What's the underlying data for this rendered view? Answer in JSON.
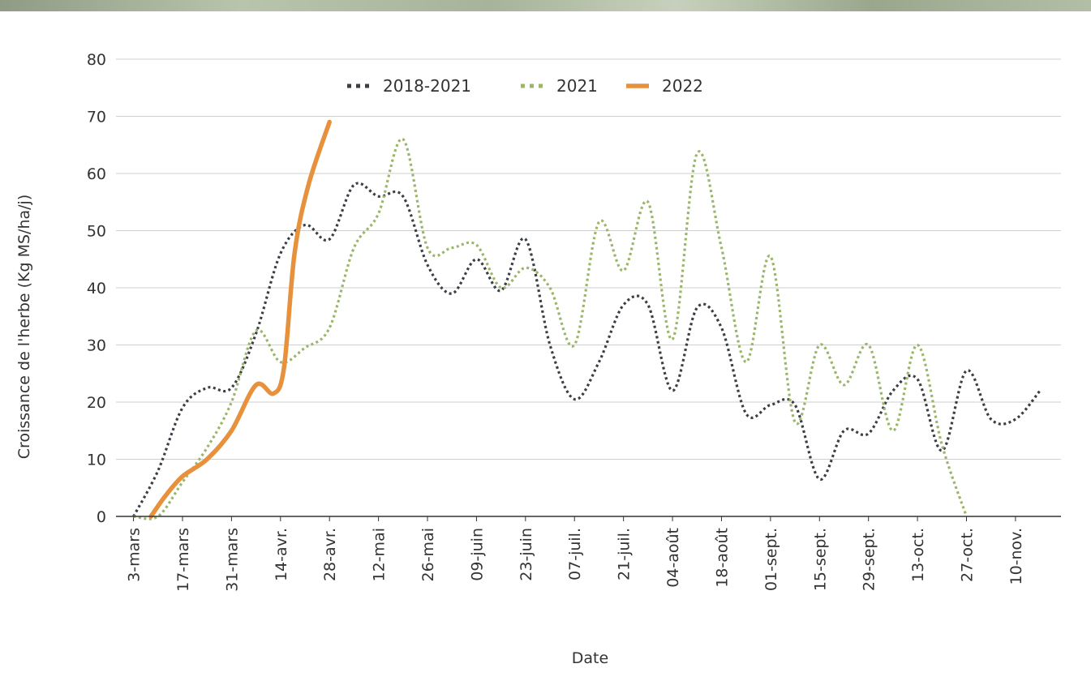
{
  "chart_data": {
    "type": "line",
    "xlabel": "Date",
    "ylabel": "Croissance de l'herbe (Kg MS/ha/j)",
    "ylim": [
      0,
      80
    ],
    "yticks": [
      0,
      10,
      20,
      30,
      40,
      50,
      60,
      70,
      80
    ],
    "xlim": [
      "2022-02-26",
      "2022-11-23"
    ],
    "x_tick_labels": [
      {
        "date": "2022-03-03",
        "label": "3-mars"
      },
      {
        "date": "2022-03-17",
        "label": "17-mars"
      },
      {
        "date": "2022-03-31",
        "label": "31-mars"
      },
      {
        "date": "2022-04-14",
        "label": "14-avr."
      },
      {
        "date": "2022-04-28",
        "label": "28-avr."
      },
      {
        "date": "2022-05-12",
        "label": "12-mai"
      },
      {
        "date": "2022-05-26",
        "label": "26-mai"
      },
      {
        "date": "2022-06-09",
        "label": "09-juin"
      },
      {
        "date": "2022-06-23",
        "label": "23-juin"
      },
      {
        "date": "2022-07-07",
        "label": "07-juil."
      },
      {
        "date": "2022-07-21",
        "label": "21-juil."
      },
      {
        "date": "2022-08-04",
        "label": "04-août"
      },
      {
        "date": "2022-08-18",
        "label": "18-août"
      },
      {
        "date": "2022-09-01",
        "label": "01-sept."
      },
      {
        "date": "2022-09-15",
        "label": "15-sept."
      },
      {
        "date": "2022-09-29",
        "label": "29-sept."
      },
      {
        "date": "2022-10-13",
        "label": "13-oct."
      },
      {
        "date": "2022-10-27",
        "label": "27-oct."
      },
      {
        "date": "2022-11-10",
        "label": "10-nov."
      }
    ],
    "grid": true,
    "legend_position": "top-center",
    "series": [
      {
        "name": "2018-2021",
        "color": "#3a3f45",
        "style": "dotted",
        "points": [
          {
            "x": "2022-03-03",
            "y": 0
          },
          {
            "x": "2022-03-10",
            "y": 8
          },
          {
            "x": "2022-03-17",
            "y": 19
          },
          {
            "x": "2022-03-24",
            "y": 22.5
          },
          {
            "x": "2022-03-31",
            "y": 22.5
          },
          {
            "x": "2022-04-07",
            "y": 32
          },
          {
            "x": "2022-04-14",
            "y": 46
          },
          {
            "x": "2022-04-21",
            "y": 51
          },
          {
            "x": "2022-04-28",
            "y": 48.5
          },
          {
            "x": "2022-05-05",
            "y": 58
          },
          {
            "x": "2022-05-12",
            "y": 56
          },
          {
            "x": "2022-05-19",
            "y": 56
          },
          {
            "x": "2022-05-26",
            "y": 44
          },
          {
            "x": "2022-06-02",
            "y": 39
          },
          {
            "x": "2022-06-09",
            "y": 45
          },
          {
            "x": "2022-06-16",
            "y": 39.5
          },
          {
            "x": "2022-06-23",
            "y": 48.5
          },
          {
            "x": "2022-06-30",
            "y": 30
          },
          {
            "x": "2022-07-07",
            "y": 20.5
          },
          {
            "x": "2022-07-14",
            "y": 27
          },
          {
            "x": "2022-07-21",
            "y": 37
          },
          {
            "x": "2022-07-28",
            "y": 37
          },
          {
            "x": "2022-08-04",
            "y": 22
          },
          {
            "x": "2022-08-11",
            "y": 36.5
          },
          {
            "x": "2022-08-18",
            "y": 33
          },
          {
            "x": "2022-08-25",
            "y": 18
          },
          {
            "x": "2022-09-01",
            "y": 19.5
          },
          {
            "x": "2022-09-08",
            "y": 19.5
          },
          {
            "x": "2022-09-15",
            "y": 6.5
          },
          {
            "x": "2022-09-22",
            "y": 15
          },
          {
            "x": "2022-09-29",
            "y": 14.5
          },
          {
            "x": "2022-10-06",
            "y": 22
          },
          {
            "x": "2022-10-13",
            "y": 24
          },
          {
            "x": "2022-10-20",
            "y": 11.5
          },
          {
            "x": "2022-10-27",
            "y": 25.5
          },
          {
            "x": "2022-11-03",
            "y": 17
          },
          {
            "x": "2022-11-10",
            "y": 17
          },
          {
            "x": "2022-11-17",
            "y": 22
          }
        ]
      },
      {
        "name": "2021",
        "color": "#9bb56a",
        "style": "dotted",
        "points": [
          {
            "x": "2022-03-03",
            "y": 0
          },
          {
            "x": "2022-03-10",
            "y": 0
          },
          {
            "x": "2022-03-17",
            "y": 6
          },
          {
            "x": "2022-03-24",
            "y": 12
          },
          {
            "x": "2022-03-31",
            "y": 20
          },
          {
            "x": "2022-04-07",
            "y": 32.5
          },
          {
            "x": "2022-04-14",
            "y": 27
          },
          {
            "x": "2022-04-21",
            "y": 29.5
          },
          {
            "x": "2022-04-28",
            "y": 33
          },
          {
            "x": "2022-05-05",
            "y": 47
          },
          {
            "x": "2022-05-12",
            "y": 53
          },
          {
            "x": "2022-05-19",
            "y": 66
          },
          {
            "x": "2022-05-26",
            "y": 47
          },
          {
            "x": "2022-06-02",
            "y": 47
          },
          {
            "x": "2022-06-09",
            "y": 47.5
          },
          {
            "x": "2022-06-16",
            "y": 40
          },
          {
            "x": "2022-06-23",
            "y": 43.5
          },
          {
            "x": "2022-06-30",
            "y": 40
          },
          {
            "x": "2022-07-07",
            "y": 30
          },
          {
            "x": "2022-07-14",
            "y": 51.5
          },
          {
            "x": "2022-07-21",
            "y": 43
          },
          {
            "x": "2022-07-28",
            "y": 55
          },
          {
            "x": "2022-08-04",
            "y": 31
          },
          {
            "x": "2022-08-11",
            "y": 63.5
          },
          {
            "x": "2022-08-18",
            "y": 47
          },
          {
            "x": "2022-08-25",
            "y": 27
          },
          {
            "x": "2022-09-01",
            "y": 45.5
          },
          {
            "x": "2022-09-08",
            "y": 16.5
          },
          {
            "x": "2022-09-15",
            "y": 30
          },
          {
            "x": "2022-09-22",
            "y": 23
          },
          {
            "x": "2022-09-29",
            "y": 30
          },
          {
            "x": "2022-10-06",
            "y": 15
          },
          {
            "x": "2022-10-13",
            "y": 30
          },
          {
            "x": "2022-10-20",
            "y": 12.5
          },
          {
            "x": "2022-10-27",
            "y": 0
          }
        ]
      },
      {
        "name": "2022",
        "color": "#e8913c",
        "style": "solid",
        "points": [
          {
            "x": "2022-03-08",
            "y": 0
          },
          {
            "x": "2022-03-12",
            "y": 3.5
          },
          {
            "x": "2022-03-17",
            "y": 7
          },
          {
            "x": "2022-03-24",
            "y": 10
          },
          {
            "x": "2022-03-31",
            "y": 15
          },
          {
            "x": "2022-04-07",
            "y": 23
          },
          {
            "x": "2022-04-12",
            "y": 21.5
          },
          {
            "x": "2022-04-15",
            "y": 26
          },
          {
            "x": "2022-04-18",
            "y": 46
          },
          {
            "x": "2022-04-22",
            "y": 58
          },
          {
            "x": "2022-04-28",
            "y": 69
          }
        ]
      }
    ]
  }
}
